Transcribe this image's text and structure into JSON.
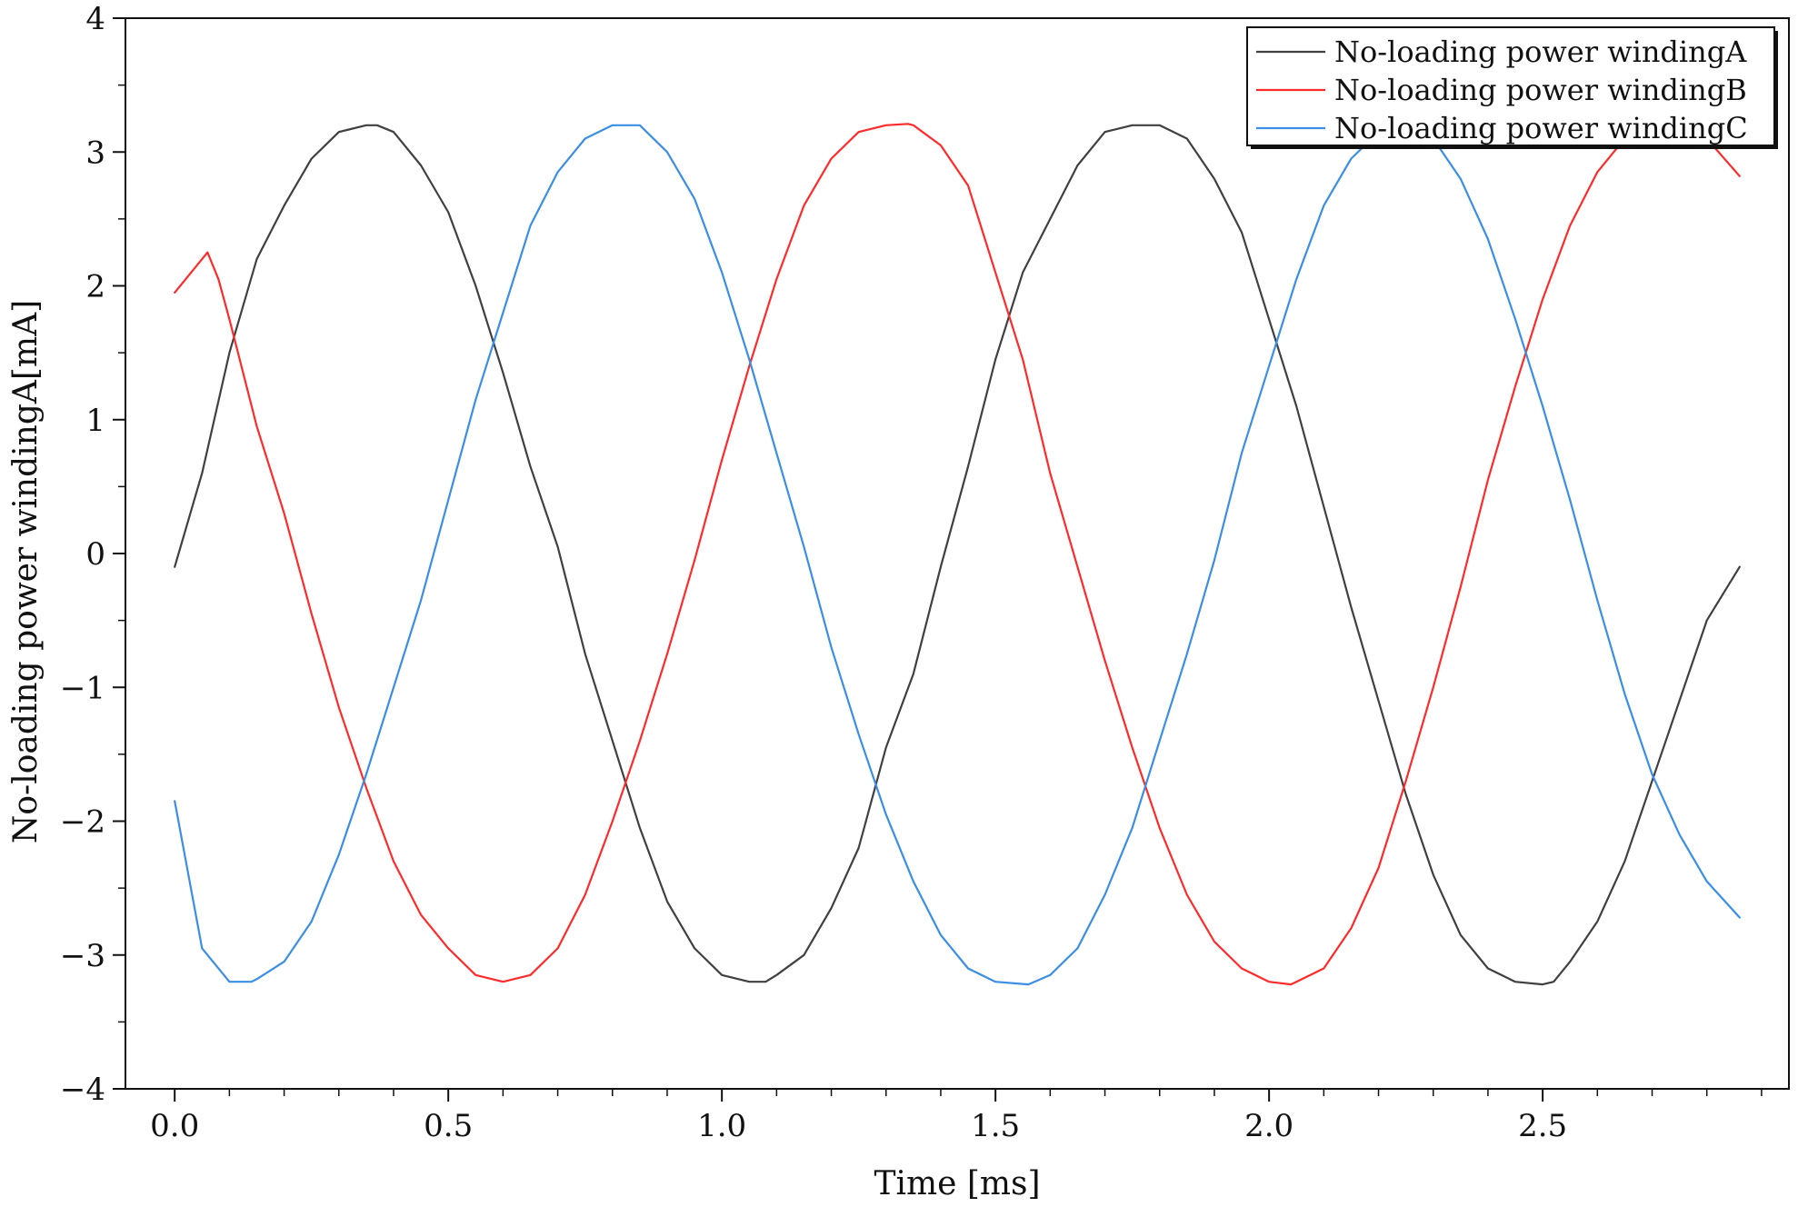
{
  "chart_data": {
    "type": "line",
    "title": "",
    "xlabel": "Time [ms]",
    "ylabel": "No-loading power windingA[mA]",
    "xlim": [
      -0.09,
      2.95
    ],
    "ylim": [
      -4,
      4
    ],
    "xticks": [
      0.0,
      0.5,
      1.0,
      1.5,
      2.0,
      2.5
    ],
    "xtick_labels": [
      "0.0",
      "0.5",
      "1.0",
      "1.5",
      "2.0",
      "2.5"
    ],
    "yticks": [
      -4,
      -3,
      -2,
      -1,
      0,
      1,
      2,
      3,
      4
    ],
    "ytick_labels": [
      "−4",
      "−3",
      "−2",
      "−1",
      "0",
      "1",
      "2",
      "3",
      "4"
    ],
    "grid": false,
    "legend_position": "top-right",
    "series": [
      {
        "name": "No-loading power windingA",
        "color": "#404040",
        "x": [
          0.0,
          0.05,
          0.1,
          0.15,
          0.2,
          0.25,
          0.3,
          0.35,
          0.37,
          0.4,
          0.45,
          0.5,
          0.55,
          0.6,
          0.65,
          0.7,
          0.75,
          0.8,
          0.85,
          0.9,
          0.95,
          1.0,
          1.05,
          1.08,
          1.1,
          1.15,
          1.2,
          1.25,
          1.3,
          1.35,
          1.4,
          1.45,
          1.5,
          1.55,
          1.6,
          1.65,
          1.7,
          1.75,
          1.8,
          1.85,
          1.9,
          1.95,
          2.0,
          2.05,
          2.1,
          2.15,
          2.2,
          2.25,
          2.3,
          2.35,
          2.4,
          2.45,
          2.5,
          2.52,
          2.55,
          2.6,
          2.65,
          2.7,
          2.75,
          2.8,
          2.86
        ],
        "y": [
          -0.1,
          0.6,
          1.5,
          2.2,
          2.6,
          2.95,
          3.15,
          3.2,
          3.2,
          3.15,
          2.9,
          2.55,
          2.0,
          1.35,
          0.65,
          0.05,
          -0.75,
          -1.4,
          -2.05,
          -2.6,
          -2.95,
          -3.15,
          -3.2,
          -3.2,
          -3.15,
          -3.0,
          -2.65,
          -2.2,
          -1.45,
          -0.9,
          -0.1,
          0.65,
          1.45,
          2.1,
          2.5,
          2.9,
          3.15,
          3.2,
          3.2,
          3.1,
          2.8,
          2.4,
          1.75,
          1.1,
          0.35,
          -0.4,
          -1.1,
          -1.8,
          -2.4,
          -2.85,
          -3.1,
          -3.2,
          -3.22,
          -3.2,
          -3.05,
          -2.75,
          -2.3,
          -1.7,
          -1.1,
          -0.5,
          -0.1
        ]
      },
      {
        "name": "No-loading power windingB",
        "color": "#ff2a2a",
        "x": [
          0.0,
          0.06,
          0.08,
          0.1,
          0.15,
          0.2,
          0.25,
          0.3,
          0.35,
          0.4,
          0.45,
          0.5,
          0.55,
          0.6,
          0.65,
          0.7,
          0.75,
          0.8,
          0.85,
          0.9,
          0.95,
          1.0,
          1.05,
          1.1,
          1.15,
          1.2,
          1.25,
          1.3,
          1.34,
          1.35,
          1.4,
          1.45,
          1.5,
          1.55,
          1.6,
          1.65,
          1.7,
          1.75,
          1.8,
          1.85,
          1.9,
          1.95,
          2.0,
          2.04,
          2.05,
          2.1,
          2.15,
          2.2,
          2.25,
          2.3,
          2.35,
          2.4,
          2.45,
          2.5,
          2.55,
          2.6,
          2.65,
          2.7,
          2.75,
          2.8,
          2.86
        ],
        "y": [
          1.95,
          2.25,
          2.05,
          1.75,
          0.95,
          0.3,
          -0.45,
          -1.15,
          -1.75,
          -2.3,
          -2.7,
          -2.95,
          -3.15,
          -3.2,
          -3.15,
          -2.95,
          -2.55,
          -2.0,
          -1.4,
          -0.75,
          -0.05,
          0.7,
          1.4,
          2.05,
          2.6,
          2.95,
          3.15,
          3.2,
          3.21,
          3.2,
          3.05,
          2.75,
          2.1,
          1.45,
          0.6,
          -0.1,
          -0.8,
          -1.45,
          -2.05,
          -2.55,
          -2.9,
          -3.1,
          -3.2,
          -3.22,
          -3.2,
          -3.1,
          -2.8,
          -2.35,
          -1.7,
          -1.0,
          -0.25,
          0.55,
          1.25,
          1.9,
          2.45,
          2.85,
          3.1,
          3.2,
          3.2,
          3.1,
          2.82
        ]
      },
      {
        "name": "No-loading power windingC",
        "color": "#3a8ee6",
        "x": [
          0.0,
          0.05,
          0.1,
          0.14,
          0.15,
          0.2,
          0.25,
          0.3,
          0.35,
          0.4,
          0.45,
          0.5,
          0.55,
          0.6,
          0.65,
          0.7,
          0.75,
          0.8,
          0.85,
          0.9,
          0.95,
          1.0,
          1.05,
          1.1,
          1.15,
          1.2,
          1.25,
          1.3,
          1.35,
          1.4,
          1.45,
          1.5,
          1.56,
          1.6,
          1.65,
          1.7,
          1.75,
          1.8,
          1.85,
          1.9,
          1.95,
          2.0,
          2.05,
          2.1,
          2.15,
          2.2,
          2.25,
          2.3,
          2.35,
          2.4,
          2.45,
          2.5,
          2.55,
          2.6,
          2.65,
          2.7,
          2.75,
          2.8,
          2.86
        ],
        "y": [
          -1.85,
          -2.95,
          -3.2,
          -3.2,
          -3.18,
          -3.05,
          -2.75,
          -2.25,
          -1.65,
          -1.0,
          -0.35,
          0.4,
          1.15,
          1.8,
          2.45,
          2.85,
          3.1,
          3.2,
          3.2,
          3.0,
          2.65,
          2.1,
          1.45,
          0.75,
          0.05,
          -0.7,
          -1.35,
          -1.95,
          -2.45,
          -2.85,
          -3.1,
          -3.2,
          -3.22,
          -3.15,
          -2.95,
          -2.55,
          -2.05,
          -1.4,
          -0.75,
          -0.05,
          0.75,
          1.4,
          2.05,
          2.6,
          2.95,
          3.15,
          3.2,
          3.1,
          2.8,
          2.35,
          1.75,
          1.1,
          0.4,
          -0.35,
          -1.05,
          -1.65,
          -2.1,
          -2.45,
          -2.72
        ]
      }
    ]
  }
}
